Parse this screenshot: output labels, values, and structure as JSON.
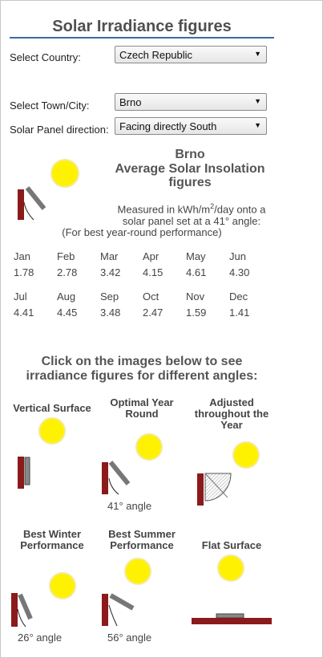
{
  "page": {
    "title": "Solar Irradiance figures"
  },
  "form": {
    "country_label": "Select Country:",
    "country_value": "Czech Republic",
    "town_label": "Select Town/City:",
    "town_value": "Brno",
    "direction_label": "Solar Panel direction:",
    "direction_value": "Facing directly South"
  },
  "summary": {
    "city": "Brno",
    "heading_line1": "Average Solar Insolation",
    "heading_line2": "figures",
    "measured_line1_a": "Measured in kWh/m",
    "measured_line1_sup": "2",
    "measured_line1_b": "/day onto a",
    "measured_line2": "solar panel set at a 41° angle:",
    "measured_line3": "(For best year-round performance)"
  },
  "months": [
    {
      "label": "Jan",
      "value": "1.78"
    },
    {
      "label": "Feb",
      "value": "2.78"
    },
    {
      "label": "Mar",
      "value": "3.42"
    },
    {
      "label": "Apr",
      "value": "4.15"
    },
    {
      "label": "May",
      "value": "4.61"
    },
    {
      "label": "Jun",
      "value": "4.30"
    },
    {
      "label": "Jul",
      "value": "4.41"
    },
    {
      "label": "Aug",
      "value": "4.45"
    },
    {
      "label": "Sep",
      "value": "3.48"
    },
    {
      "label": "Oct",
      "value": "2.47"
    },
    {
      "label": "Nov",
      "value": "1.59"
    },
    {
      "label": "Dec",
      "value": "1.41"
    }
  ],
  "angles_section": {
    "heading_line1": "Click on the images below to see",
    "heading_line2": "irradiance figures for different angles:",
    "options": [
      {
        "caption_1": "Vertical Surface",
        "caption_2": "",
        "caption_3": "",
        "angle": ""
      },
      {
        "caption_1": "Optimal Year",
        "caption_2": "Round",
        "caption_3": "",
        "angle": "41° angle"
      },
      {
        "caption_1": "Adjusted",
        "caption_2": "throughout the",
        "caption_3": "Year",
        "angle": ""
      },
      {
        "caption_1": "Best Winter",
        "caption_2": "Performance",
        "caption_3": "",
        "angle": "26° angle"
      },
      {
        "caption_1": "Best Summer",
        "caption_2": "Performance",
        "caption_3": "",
        "angle": "56° angle"
      },
      {
        "caption_1": "Flat Surface",
        "caption_2": "",
        "caption_3": "",
        "angle": ""
      }
    ]
  },
  "colors": {
    "sun": "#fff200",
    "sun_halo": "#f3e9a0",
    "wall": "#8b1a1a",
    "panel": "#888888",
    "rule": "#3a6ea5"
  }
}
